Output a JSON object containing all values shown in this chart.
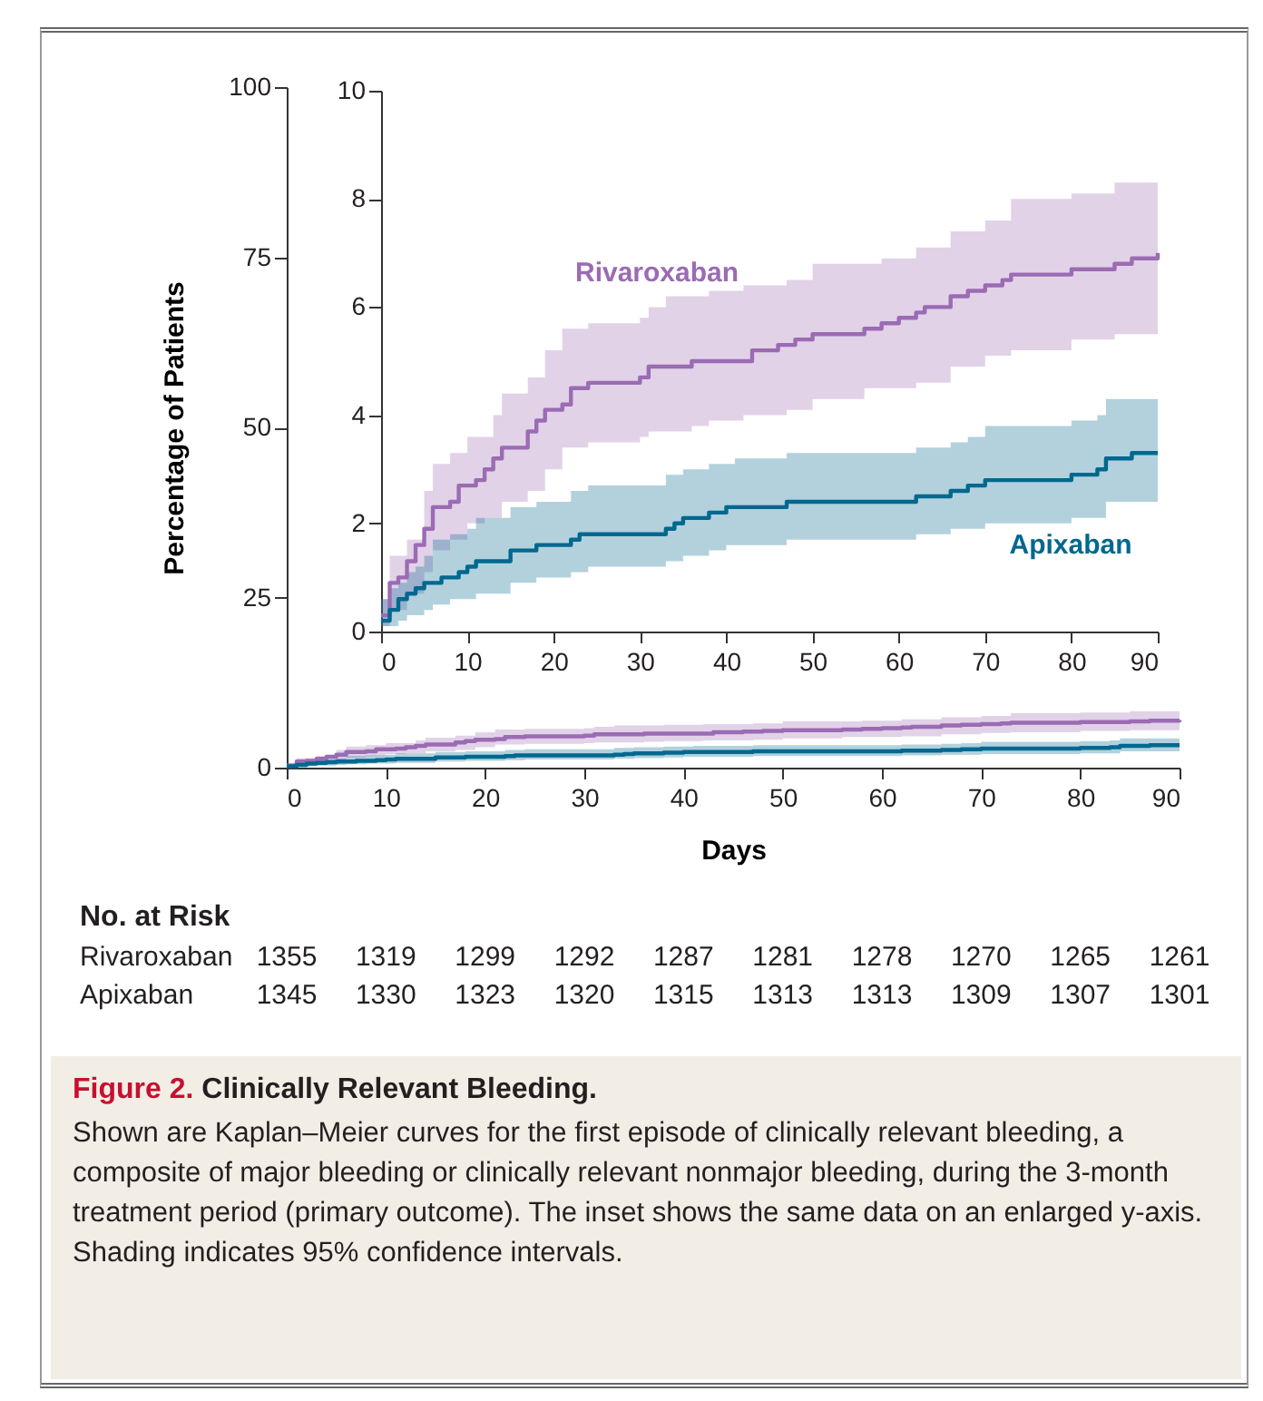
{
  "chart_data": [
    {
      "type": "step",
      "title": "Figure 2. Clinically Relevant Bleeding.",
      "xlabel": "Days",
      "ylabel": "Percentage of Patients",
      "xlim": [
        0,
        90
      ],
      "xticks": [
        0,
        10,
        20,
        30,
        40,
        50,
        60,
        70,
        80,
        90
      ],
      "ylim": [
        0,
        100
      ],
      "yticks": [
        0,
        25,
        50,
        75,
        100
      ],
      "grid": false,
      "legend": false,
      "series": [
        {
          "color": "#9b6bb3",
          "x": [
            0,
            1,
            2,
            3,
            4,
            5,
            6,
            8,
            9,
            10,
            11,
            12,
            13,
            14,
            17,
            18,
            19,
            21,
            22,
            24,
            30,
            31,
            33,
            36,
            38,
            42,
            43,
            46,
            47,
            48,
            50,
            56,
            58,
            60,
            62,
            63,
            66,
            68,
            70,
            72,
            73,
            80,
            85,
            87,
            90
          ],
          "values": [
            0.3,
            0.9,
            1.0,
            1.3,
            1.6,
            1.9,
            2.3,
            2.4,
            2.7,
            2.7,
            2.8,
            3.0,
            3.2,
            3.4,
            3.7,
            3.9,
            4.1,
            4.2,
            4.5,
            4.6,
            4.7,
            4.9,
            4.9,
            5.0,
            5.0,
            5.0,
            5.2,
            5.3,
            5.3,
            5.4,
            5.5,
            5.6,
            5.7,
            5.8,
            5.9,
            6.0,
            6.2,
            6.3,
            6.4,
            6.5,
            6.6,
            6.7,
            6.8,
            6.9,
            7.0
          ],
          "lower": [
            0.1,
            0.4,
            0.4,
            0.7,
            0.7,
            1.1,
            1.5,
            1.7,
            1.7,
            2.0,
            2.0,
            2.1,
            2.1,
            2.4,
            2.6,
            2.6,
            3.0,
            3.4,
            3.4,
            3.5,
            3.6,
            3.7,
            3.7,
            3.8,
            3.9,
            4.0,
            4.0,
            4.0,
            4.1,
            4.1,
            4.3,
            4.5,
            4.5,
            4.5,
            4.6,
            4.6,
            4.9,
            4.9,
            5.1,
            5.1,
            5.2,
            5.4,
            5.5,
            5.5,
            5.7
          ],
          "upper": [
            0.6,
            1.4,
            1.4,
            1.7,
            1.7,
            2.6,
            3.1,
            3.3,
            3.3,
            3.6,
            3.6,
            3.6,
            4.0,
            4.4,
            4.7,
            4.7,
            5.2,
            5.6,
            5.6,
            5.7,
            5.8,
            6.0,
            6.2,
            6.2,
            6.3,
            6.4,
            6.4,
            6.4,
            6.5,
            6.5,
            6.8,
            6.8,
            6.9,
            6.9,
            7.1,
            7.1,
            7.4,
            7.4,
            7.6,
            7.6,
            8.0,
            8.1,
            8.3,
            8.3,
            8.3
          ]
        },
        {
          "color": "#00688f",
          "x": [
            0,
            1,
            2,
            3,
            4,
            5,
            6,
            7,
            8,
            9,
            10,
            11,
            12,
            15,
            18,
            22,
            23,
            24,
            30,
            33,
            34,
            35,
            37,
            38,
            40,
            41,
            47,
            62,
            66,
            68,
            70,
            80,
            83,
            84,
            87,
            90
          ],
          "values": [
            0.2,
            0.4,
            0.6,
            0.7,
            0.8,
            0.9,
            0.9,
            1.0,
            1.0,
            1.1,
            1.2,
            1.3,
            1.3,
            1.5,
            1.6,
            1.7,
            1.8,
            1.8,
            1.8,
            1.9,
            2.0,
            2.1,
            2.1,
            2.2,
            2.3,
            2.3,
            2.4,
            2.5,
            2.6,
            2.7,
            2.8,
            2.9,
            3.0,
            3.2,
            3.3,
            3.3
          ],
          "lower": [
            0.1,
            0.1,
            0.2,
            0.3,
            0.3,
            0.4,
            0.5,
            0.5,
            0.6,
            0.6,
            0.6,
            0.7,
            0.7,
            0.9,
            1.0,
            1.1,
            1.1,
            1.2,
            1.2,
            1.3,
            1.3,
            1.4,
            1.4,
            1.5,
            1.6,
            1.6,
            1.7,
            1.8,
            1.9,
            1.9,
            2.0,
            2.1,
            2.1,
            2.4,
            2.4,
            2.4
          ],
          "upper": [
            0.6,
            0.8,
            0.9,
            1.1,
            1.2,
            1.4,
            1.7,
            1.7,
            1.8,
            1.8,
            1.9,
            2.1,
            2.1,
            2.3,
            2.4,
            2.6,
            2.6,
            2.7,
            2.7,
            2.9,
            2.9,
            3.0,
            3.0,
            3.1,
            3.1,
            3.2,
            3.3,
            3.4,
            3.5,
            3.6,
            3.8,
            3.9,
            4.0,
            4.3,
            4.3,
            4.3
          ]
        }
      ],
      "annotations": [
        "No. at Risk",
        "Rivaroxaban 1355 1319 1299 1292 1287 1281 1278 1270 1265 1261",
        "Apixaban 1345 1330 1323 1320 1315 1313 1313 1309 1307 1301",
        "Shown are Kaplan–Meier curves for the first episode of clinically relevant bleeding, a composite of major bleeding or clinically relevant nonmajor bleeding, during the 3-month treatment period (primary outcome). The inset shows the same data on an enlarged y-axis. Shading indicates 95% confidence intervals."
      ]
    },
    {
      "type": "step",
      "xlim": [
        0,
        90
      ],
      "xticks": [
        0,
        10,
        20,
        30,
        40,
        50,
        60,
        70,
        80,
        90
      ],
      "ylim": [
        0,
        10
      ],
      "yticks": [
        0,
        2,
        4,
        6,
        8,
        10
      ],
      "grid": false,
      "legend": false,
      "series": [
        {
          "name": "Rivaroxaban",
          "color": "#9b6bb3",
          "x": [
            0,
            1,
            2,
            3,
            4,
            5,
            6,
            8,
            9,
            10,
            11,
            12,
            13,
            14,
            17,
            18,
            19,
            21,
            22,
            24,
            30,
            31,
            33,
            36,
            38,
            42,
            43,
            46,
            47,
            48,
            50,
            56,
            58,
            60,
            62,
            63,
            66,
            68,
            70,
            72,
            73,
            80,
            85,
            87,
            90
          ],
          "values": [
            0.3,
            0.9,
            1.0,
            1.3,
            1.6,
            1.9,
            2.3,
            2.4,
            2.7,
            2.7,
            2.8,
            3.0,
            3.2,
            3.4,
            3.7,
            3.9,
            4.1,
            4.2,
            4.5,
            4.6,
            4.7,
            4.9,
            4.9,
            5.0,
            5.0,
            5.0,
            5.2,
            5.3,
            5.3,
            5.4,
            5.5,
            5.6,
            5.7,
            5.8,
            5.9,
            6.0,
            6.2,
            6.3,
            6.4,
            6.5,
            6.6,
            6.7,
            6.8,
            6.9,
            7.0
          ],
          "lower": [
            0.1,
            0.4,
            0.4,
            0.7,
            0.7,
            1.1,
            1.5,
            1.7,
            1.7,
            2.0,
            2.0,
            2.1,
            2.1,
            2.4,
            2.6,
            2.6,
            3.0,
            3.4,
            3.4,
            3.5,
            3.6,
            3.7,
            3.7,
            3.8,
            3.9,
            4.0,
            4.0,
            4.0,
            4.1,
            4.1,
            4.3,
            4.5,
            4.5,
            4.5,
            4.6,
            4.6,
            4.9,
            4.9,
            5.1,
            5.1,
            5.2,
            5.4,
            5.5,
            5.5,
            5.7
          ],
          "upper": [
            0.6,
            1.4,
            1.4,
            1.7,
            1.7,
            2.6,
            3.1,
            3.3,
            3.3,
            3.6,
            3.6,
            3.6,
            4.0,
            4.4,
            4.7,
            4.7,
            5.2,
            5.6,
            5.6,
            5.7,
            5.8,
            6.0,
            6.2,
            6.2,
            6.3,
            6.4,
            6.4,
            6.4,
            6.5,
            6.5,
            6.8,
            6.8,
            6.9,
            6.9,
            7.1,
            7.1,
            7.4,
            7.4,
            7.6,
            7.6,
            8.0,
            8.1,
            8.3,
            8.3,
            8.3
          ]
        },
        {
          "name": "Apixaban",
          "color": "#00688f",
          "x": [
            0,
            1,
            2,
            3,
            4,
            5,
            6,
            7,
            8,
            9,
            10,
            11,
            12,
            15,
            18,
            22,
            23,
            24,
            30,
            33,
            34,
            35,
            37,
            38,
            40,
            41,
            47,
            62,
            66,
            68,
            70,
            80,
            83,
            84,
            87,
            90
          ],
          "values": [
            0.2,
            0.4,
            0.6,
            0.7,
            0.8,
            0.9,
            0.9,
            1.0,
            1.0,
            1.1,
            1.2,
            1.3,
            1.3,
            1.5,
            1.6,
            1.7,
            1.8,
            1.8,
            1.8,
            1.9,
            2.0,
            2.1,
            2.1,
            2.2,
            2.3,
            2.3,
            2.4,
            2.5,
            2.6,
            2.7,
            2.8,
            2.9,
            3.0,
            3.2,
            3.3,
            3.3
          ],
          "lower": [
            0.1,
            0.1,
            0.2,
            0.3,
            0.3,
            0.4,
            0.5,
            0.5,
            0.6,
            0.6,
            0.6,
            0.7,
            0.7,
            0.9,
            1.0,
            1.1,
            1.1,
            1.2,
            1.2,
            1.3,
            1.3,
            1.4,
            1.4,
            1.5,
            1.6,
            1.6,
            1.7,
            1.8,
            1.9,
            1.9,
            2.0,
            2.1,
            2.1,
            2.4,
            2.4,
            2.4
          ],
          "upper": [
            0.6,
            0.8,
            0.9,
            1.1,
            1.2,
            1.4,
            1.7,
            1.7,
            1.8,
            1.8,
            1.9,
            2.1,
            2.1,
            2.3,
            2.4,
            2.6,
            2.6,
            2.7,
            2.7,
            2.9,
            2.9,
            3.0,
            3.0,
            3.1,
            3.1,
            3.2,
            3.3,
            3.4,
            3.5,
            3.6,
            3.8,
            3.9,
            4.0,
            4.3,
            4.3,
            4.3
          ]
        }
      ]
    }
  ]
}
